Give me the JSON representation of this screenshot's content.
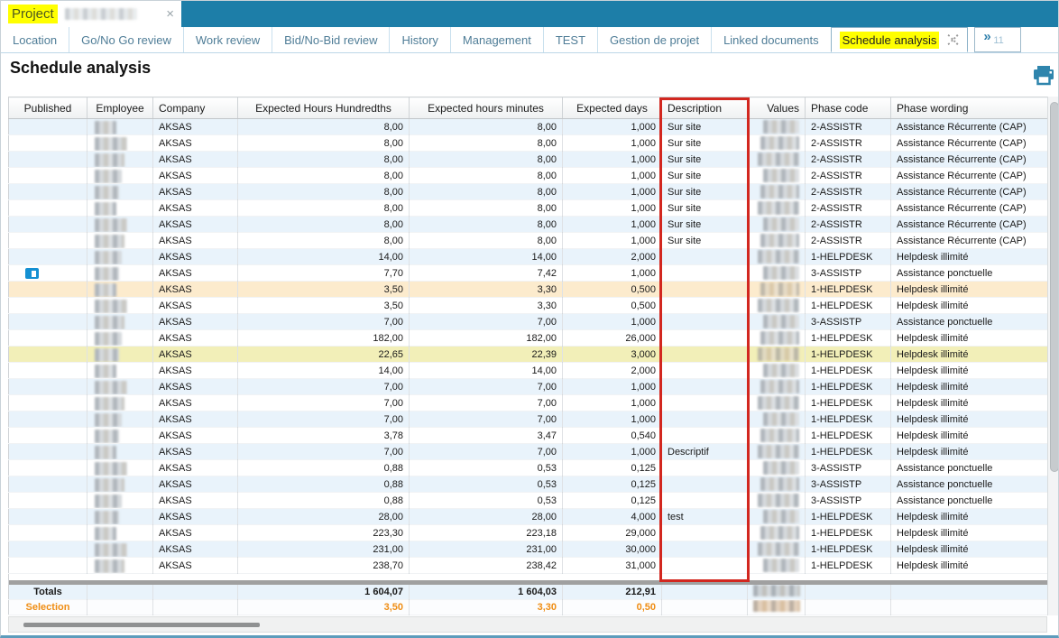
{
  "titlebar": {
    "doc_title": "Project",
    "close_glyph": "×"
  },
  "tabs": [
    "Location",
    "Go/No Go review",
    "Work review",
    "Bid/No-Bid review",
    "History",
    "Management",
    "TEST",
    "Gestion de projet",
    "Linked documents",
    "Schedule analysis"
  ],
  "tab_overflow": {
    "glyph": "»",
    "count": "11"
  },
  "page": {
    "title": "Schedule analysis"
  },
  "icons": {
    "print": "printer-icon",
    "published": "book-icon",
    "tab_close": "dashed-x-icon"
  },
  "table": {
    "columns": [
      "Published",
      "Employee",
      "Company",
      "Expected Hours Hundredths",
      "Expected hours minutes",
      "Expected days",
      "Description",
      "Values",
      "Phase code",
      "Phase wording"
    ],
    "rows": [
      {
        "published": false,
        "company": "AKSAS",
        "hundredths": "8,00",
        "minutes": "8,00",
        "days": "1,000",
        "description": "Sur site",
        "phase_code": "2-ASSISTR",
        "phase_wording": "Assistance Récurrente (CAP)",
        "highlight": ""
      },
      {
        "published": false,
        "company": "AKSAS",
        "hundredths": "8,00",
        "minutes": "8,00",
        "days": "1,000",
        "description": "Sur site",
        "phase_code": "2-ASSISTR",
        "phase_wording": "Assistance Récurrente (CAP)",
        "highlight": ""
      },
      {
        "published": false,
        "company": "AKSAS",
        "hundredths": "8,00",
        "minutes": "8,00",
        "days": "1,000",
        "description": "Sur site",
        "phase_code": "2-ASSISTR",
        "phase_wording": "Assistance Récurrente (CAP)",
        "highlight": ""
      },
      {
        "published": false,
        "company": "AKSAS",
        "hundredths": "8,00",
        "minutes": "8,00",
        "days": "1,000",
        "description": "Sur site",
        "phase_code": "2-ASSISTR",
        "phase_wording": "Assistance Récurrente (CAP)",
        "highlight": ""
      },
      {
        "published": false,
        "company": "AKSAS",
        "hundredths": "8,00",
        "minutes": "8,00",
        "days": "1,000",
        "description": "Sur site",
        "phase_code": "2-ASSISTR",
        "phase_wording": "Assistance Récurrente (CAP)",
        "highlight": ""
      },
      {
        "published": false,
        "company": "AKSAS",
        "hundredths": "8,00",
        "minutes": "8,00",
        "days": "1,000",
        "description": "Sur site",
        "phase_code": "2-ASSISTR",
        "phase_wording": "Assistance Récurrente (CAP)",
        "highlight": ""
      },
      {
        "published": false,
        "company": "AKSAS",
        "hundredths": "8,00",
        "minutes": "8,00",
        "days": "1,000",
        "description": "Sur site",
        "phase_code": "2-ASSISTR",
        "phase_wording": "Assistance Récurrente (CAP)",
        "highlight": ""
      },
      {
        "published": false,
        "company": "AKSAS",
        "hundredths": "8,00",
        "minutes": "8,00",
        "days": "1,000",
        "description": "Sur site",
        "phase_code": "2-ASSISTR",
        "phase_wording": "Assistance Récurrente (CAP)",
        "highlight": ""
      },
      {
        "published": false,
        "company": "AKSAS",
        "hundredths": "14,00",
        "minutes": "14,00",
        "days": "2,000",
        "description": "",
        "phase_code": "1-HELPDESK",
        "phase_wording": "Helpdesk illimité",
        "highlight": ""
      },
      {
        "published": true,
        "company": "AKSAS",
        "hundredths": "7,70",
        "minutes": "7,42",
        "days": "1,000",
        "description": "",
        "phase_code": "3-ASSISTP",
        "phase_wording": "Assistance ponctuelle",
        "highlight": ""
      },
      {
        "published": false,
        "company": "AKSAS",
        "hundredths": "3,50",
        "minutes": "3,30",
        "days": "0,500",
        "description": "",
        "phase_code": "1-HELPDESK",
        "phase_wording": "Helpdesk illimité",
        "highlight": "orange"
      },
      {
        "published": false,
        "company": "AKSAS",
        "hundredths": "3,50",
        "minutes": "3,30",
        "days": "0,500",
        "description": "",
        "phase_code": "1-HELPDESK",
        "phase_wording": "Helpdesk illimité",
        "highlight": ""
      },
      {
        "published": false,
        "company": "AKSAS",
        "hundredths": "7,00",
        "minutes": "7,00",
        "days": "1,000",
        "description": "",
        "phase_code": "3-ASSISTP",
        "phase_wording": "Assistance ponctuelle",
        "highlight": ""
      },
      {
        "published": false,
        "company": "AKSAS",
        "hundredths": "182,00",
        "minutes": "182,00",
        "days": "26,000",
        "description": "",
        "phase_code": "1-HELPDESK",
        "phase_wording": "Helpdesk illimité",
        "highlight": ""
      },
      {
        "published": false,
        "company": "AKSAS",
        "hundredths": "22,65",
        "minutes": "22,39",
        "days": "3,000",
        "description": "",
        "phase_code": "1-HELPDESK",
        "phase_wording": "Helpdesk illimité",
        "highlight": "yellow"
      },
      {
        "published": false,
        "company": "AKSAS",
        "hundredths": "14,00",
        "minutes": "14,00",
        "days": "2,000",
        "description": "",
        "phase_code": "1-HELPDESK",
        "phase_wording": "Helpdesk illimité",
        "highlight": ""
      },
      {
        "published": false,
        "company": "AKSAS",
        "hundredths": "7,00",
        "minutes": "7,00",
        "days": "1,000",
        "description": "",
        "phase_code": "1-HELPDESK",
        "phase_wording": "Helpdesk illimité",
        "highlight": ""
      },
      {
        "published": false,
        "company": "AKSAS",
        "hundredths": "7,00",
        "minutes": "7,00",
        "days": "1,000",
        "description": "",
        "phase_code": "1-HELPDESK",
        "phase_wording": "Helpdesk illimité",
        "highlight": ""
      },
      {
        "published": false,
        "company": "AKSAS",
        "hundredths": "7,00",
        "minutes": "7,00",
        "days": "1,000",
        "description": "",
        "phase_code": "1-HELPDESK",
        "phase_wording": "Helpdesk illimité",
        "highlight": ""
      },
      {
        "published": false,
        "company": "AKSAS",
        "hundredths": "3,78",
        "minutes": "3,47",
        "days": "0,540",
        "description": "",
        "phase_code": "1-HELPDESK",
        "phase_wording": "Helpdesk illimité",
        "highlight": ""
      },
      {
        "published": false,
        "company": "AKSAS",
        "hundredths": "7,00",
        "minutes": "7,00",
        "days": "1,000",
        "description": "Descriptif",
        "phase_code": "1-HELPDESK",
        "phase_wording": "Helpdesk illimité",
        "highlight": ""
      },
      {
        "published": false,
        "company": "AKSAS",
        "hundredths": "0,88",
        "minutes": "0,53",
        "days": "0,125",
        "description": "",
        "phase_code": "3-ASSISTP",
        "phase_wording": "Assistance ponctuelle",
        "highlight": ""
      },
      {
        "published": false,
        "company": "AKSAS",
        "hundredths": "0,88",
        "minutes": "0,53",
        "days": "0,125",
        "description": "",
        "phase_code": "3-ASSISTP",
        "phase_wording": "Assistance ponctuelle",
        "highlight": ""
      },
      {
        "published": false,
        "company": "AKSAS",
        "hundredths": "0,88",
        "minutes": "0,53",
        "days": "0,125",
        "description": "",
        "phase_code": "3-ASSISTP",
        "phase_wording": "Assistance ponctuelle",
        "highlight": ""
      },
      {
        "published": false,
        "company": "AKSAS",
        "hundredths": "28,00",
        "minutes": "28,00",
        "days": "4,000",
        "description": "test",
        "phase_code": "1-HELPDESK",
        "phase_wording": "Helpdesk illimité",
        "highlight": ""
      },
      {
        "published": false,
        "company": "AKSAS",
        "hundredths": "223,30",
        "minutes": "223,18",
        "days": "29,000",
        "description": "",
        "phase_code": "1-HELPDESK",
        "phase_wording": "Helpdesk illimité",
        "highlight": ""
      },
      {
        "published": false,
        "company": "AKSAS",
        "hundredths": "231,00",
        "minutes": "231,00",
        "days": "30,000",
        "description": "",
        "phase_code": "1-HELPDESK",
        "phase_wording": "Helpdesk illimité",
        "highlight": ""
      },
      {
        "published": false,
        "company": "AKSAS",
        "hundredths": "238,70",
        "minutes": "238,42",
        "days": "31,000",
        "description": "",
        "phase_code": "1-HELPDESK",
        "phase_wording": "Helpdesk illimité",
        "highlight": ""
      }
    ],
    "totals": {
      "label": "Totals",
      "hundredths": "1 604,07",
      "minutes": "1 604,03",
      "days": "212,91"
    },
    "selection": {
      "label": "Selection",
      "hundredths": "3,50",
      "minutes": "3,30",
      "days": "0,50"
    }
  },
  "annotation": {
    "type": "red-box",
    "target": "Description column"
  },
  "colors": {
    "titlebar_teal": "#1d7ea8",
    "tab_text": "#4f7d97",
    "highlight_yellow": "#ffff00",
    "row_blue": "#e9f3fb",
    "row_highlight_orange": "#fcebcd",
    "row_highlight_yellow": "#f2efb8",
    "selection_orange": "#ef8d13",
    "annotation_red": "#d2271f",
    "icon_teal": "#2f85ad",
    "published_blue": "#1590d2"
  }
}
